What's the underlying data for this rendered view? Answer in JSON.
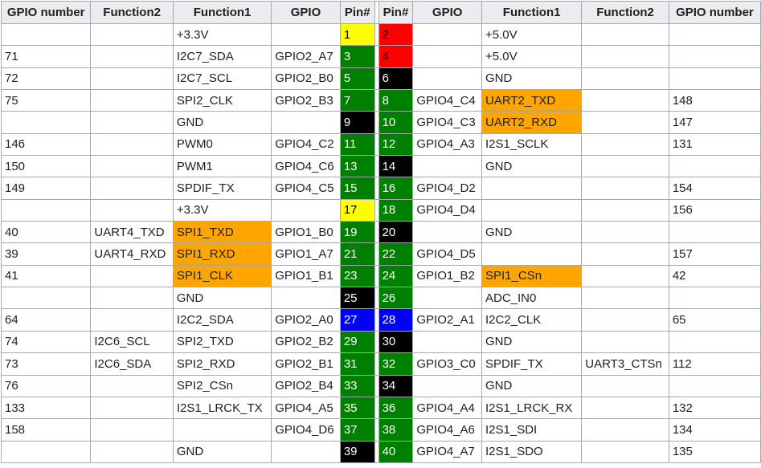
{
  "headers": [
    "GPIO number",
    "Function2",
    "Function1",
    "GPIO",
    "Pin#",
    "Pin#",
    "GPIO",
    "Function1",
    "Function2",
    "GPIO number"
  ],
  "colors": {
    "yellow": "#ffff00",
    "red": "#ff0000",
    "green": "#008000",
    "black": "#000000",
    "blue": "#0000ff",
    "highlight": "#ffa500"
  },
  "rows": [
    {
      "l": [
        "",
        "",
        "+3.3V",
        "",
        "1"
      ],
      "lc": "yellow",
      "r": [
        "2",
        "",
        "+5.0V",
        "",
        ""
      ],
      "rc": "red"
    },
    {
      "l": [
        "71",
        "",
        "I2C7_SDA",
        "GPIO2_A7",
        "3"
      ],
      "lc": "green",
      "r": [
        "4",
        "",
        "+5.0V",
        "",
        ""
      ],
      "rc": "red"
    },
    {
      "l": [
        "72",
        "",
        "I2C7_SCL",
        "GPIO2_B0",
        "5"
      ],
      "lc": "green",
      "r": [
        "6",
        "",
        "GND",
        "",
        ""
      ],
      "rc": "black"
    },
    {
      "l": [
        "75",
        "",
        "SPI2_CLK",
        "GPIO2_B3",
        "7"
      ],
      "lc": "green",
      "r": [
        "8",
        "GPIO4_C4",
        "UART2_TXD",
        "",
        "148"
      ],
      "rc": "green",
      "rh": true
    },
    {
      "l": [
        "",
        "",
        "GND",
        "",
        "9"
      ],
      "lc": "black",
      "r": [
        "10",
        "GPIO4_C3",
        "UART2_RXD",
        "",
        "147"
      ],
      "rc": "green",
      "rh": true
    },
    {
      "l": [
        "146",
        "",
        "PWM0",
        "GPIO4_C2",
        "11"
      ],
      "lc": "green",
      "r": [
        "12",
        "GPIO4_A3",
        "I2S1_SCLK",
        "",
        "131"
      ],
      "rc": "green"
    },
    {
      "l": [
        "150",
        "",
        "PWM1",
        "GPIO4_C6",
        "13"
      ],
      "lc": "green",
      "r": [
        "14",
        "",
        "GND",
        "",
        ""
      ],
      "rc": "black"
    },
    {
      "l": [
        "149",
        "",
        "SPDIF_TX",
        "GPIO4_C5",
        "15"
      ],
      "lc": "green",
      "r": [
        "16",
        "GPIO4_D2",
        "",
        "",
        "154"
      ],
      "rc": "green"
    },
    {
      "l": [
        "",
        "",
        "+3.3V",
        "",
        "17"
      ],
      "lc": "yellow",
      "r": [
        "18",
        "GPIO4_D4",
        "",
        "",
        "156"
      ],
      "rc": "green"
    },
    {
      "l": [
        "40",
        "UART4_TXD",
        "SPI1_TXD",
        "GPIO1_B0",
        "19"
      ],
      "lc": "green",
      "lh": true,
      "r": [
        "20",
        "",
        "GND",
        "",
        ""
      ],
      "rc": "black"
    },
    {
      "l": [
        "39",
        "UART4_RXD",
        "SPI1_RXD",
        "GPIO1_A7",
        "21"
      ],
      "lc": "green",
      "lh": true,
      "r": [
        "22",
        "GPIO4_D5",
        "",
        "",
        "157"
      ],
      "rc": "green"
    },
    {
      "l": [
        "41",
        "",
        "SPI1_CLK",
        "GPIO1_B1",
        "23"
      ],
      "lc": "green",
      "lh": true,
      "r": [
        "24",
        "GPIO1_B2",
        "SPI1_CSn",
        "",
        "42"
      ],
      "rc": "green",
      "rh": true
    },
    {
      "l": [
        "",
        "",
        "GND",
        "",
        "25"
      ],
      "lc": "black",
      "r": [
        "26",
        "",
        "ADC_IN0",
        "",
        ""
      ],
      "rc": "green"
    },
    {
      "l": [
        "64",
        "",
        "I2C2_SDA",
        "GPIO2_A0",
        "27"
      ],
      "lc": "blue",
      "r": [
        "28",
        "GPIO2_A1",
        "I2C2_CLK",
        "",
        "65"
      ],
      "rc": "blue"
    },
    {
      "l": [
        "74",
        "I2C6_SCL",
        "SPI2_TXD",
        "GPIO2_B2",
        "29"
      ],
      "lc": "green",
      "r": [
        "30",
        "",
        "GND",
        "",
        ""
      ],
      "rc": "black"
    },
    {
      "l": [
        "73",
        "I2C6_SDA",
        "SPI2_RXD",
        "GPIO2_B1",
        "31"
      ],
      "lc": "green",
      "r": [
        "32",
        "GPIO3_C0",
        "SPDIF_TX",
        "UART3_CTSn",
        "112"
      ],
      "rc": "green"
    },
    {
      "l": [
        "76",
        "",
        "SPI2_CSn",
        "GPIO2_B4",
        "33"
      ],
      "lc": "green",
      "r": [
        "34",
        "",
        "GND",
        "",
        ""
      ],
      "rc": "black"
    },
    {
      "l": [
        "133",
        "",
        "I2S1_LRCK_TX",
        "GPIO4_A5",
        "35"
      ],
      "lc": "green",
      "r": [
        "36",
        "GPIO4_A4",
        "I2S1_LRCK_RX",
        "",
        "132"
      ],
      "rc": "green"
    },
    {
      "l": [
        "158",
        "",
        "",
        "GPIO4_D6",
        "37"
      ],
      "lc": "green",
      "r": [
        "38",
        "GPIO4_A6",
        "I2S1_SDI",
        "",
        "134"
      ],
      "rc": "green"
    },
    {
      "l": [
        "",
        "",
        "GND",
        "",
        "39"
      ],
      "lc": "black",
      "r": [
        "40",
        "GPIO4_A7",
        "I2S1_SDO",
        "",
        "135"
      ],
      "rc": "green"
    }
  ]
}
